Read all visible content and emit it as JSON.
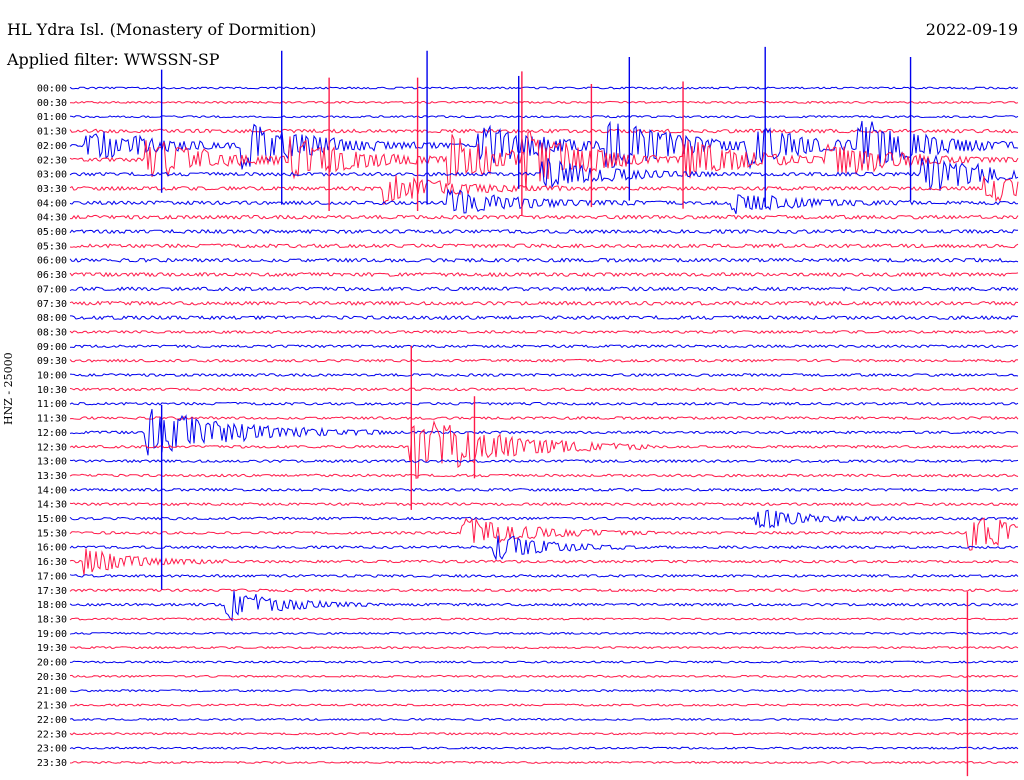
{
  "header": {
    "station": "HL Ydra Isl. (Monastery of Dormition)",
    "filter": "Applied filter: WWSSN-SP",
    "date": "2022-09-19",
    "channel_label": "HNZ - 25000"
  },
  "colors": {
    "odd_trace": "#0000ee",
    "even_trace": "#ff1a4a",
    "text": "#000000"
  },
  "chart_data": {
    "type": "helicorder",
    "title": "HL Ydra Isl. (Monastery of Dormition)",
    "subtitle": "Applied filter: WWSSN-SP",
    "ylabel": "HNZ - 25000",
    "row_labels": [
      "00:00",
      "00:30",
      "01:00",
      "01:30",
      "02:00",
      "02:30",
      "03:00",
      "03:30",
      "04:00",
      "04:30",
      "05:00",
      "05:30",
      "06:00",
      "06:30",
      "07:00",
      "07:30",
      "08:00",
      "08:30",
      "09:00",
      "09:30",
      "10:00",
      "10:30",
      "11:00",
      "11:30",
      "12:00",
      "12:30",
      "13:00",
      "13:30",
      "14:00",
      "14:30",
      "15:00",
      "15:30",
      "16:00",
      "16:30",
      "17:00",
      "17:30",
      "18:00",
      "18:30",
      "19:00",
      "19:30",
      "20:00",
      "20:30",
      "21:00",
      "21:30",
      "22:00",
      "22:30",
      "23:00",
      "23:30"
    ],
    "row_minutes": 30,
    "trace_colors": [
      "blue",
      "red"
    ],
    "events": [
      {
        "row": 4,
        "minute": 0.6,
        "amp": 1.6,
        "dur": 2.0
      },
      {
        "row": 4,
        "minute": 5.5,
        "amp": 2.2,
        "dur": 2.2
      },
      {
        "row": 4,
        "minute": 13.0,
        "amp": 2.0,
        "dur": 2.0
      },
      {
        "row": 4,
        "minute": 17.0,
        "amp": 2.4,
        "dur": 2.2
      },
      {
        "row": 4,
        "minute": 21.5,
        "amp": 1.8,
        "dur": 2.0
      },
      {
        "row": 4,
        "minute": 25.0,
        "amp": 2.4,
        "dur": 2.0
      },
      {
        "row": 5,
        "minute": 2.5,
        "amp": 2.0,
        "dur": 2.0
      },
      {
        "row": 5,
        "minute": 7.0,
        "amp": 2.0,
        "dur": 2.0
      },
      {
        "row": 5,
        "minute": 12.0,
        "amp": 2.2,
        "dur": 2.0
      },
      {
        "row": 5,
        "minute": 14.5,
        "amp": 2.2,
        "dur": 2.0
      },
      {
        "row": 5,
        "minute": 19.5,
        "amp": 1.8,
        "dur": 2.0
      },
      {
        "row": 5,
        "minute": 24.0,
        "amp": 1.8,
        "dur": 2.0
      },
      {
        "row": 6,
        "minute": 27.0,
        "amp": 2.0,
        "dur": 1.8
      },
      {
        "row": 6,
        "minute": 15.0,
        "amp": 1.6,
        "dur": 1.8
      },
      {
        "row": 7,
        "minute": 10.0,
        "amp": 1.4,
        "dur": 2.0
      },
      {
        "row": 7,
        "minute": 29.0,
        "amp": 1.4,
        "dur": 1.5
      },
      {
        "row": 8,
        "minute": 12.0,
        "amp": 1.2,
        "dur": 2.0
      },
      {
        "row": 8,
        "minute": 21.0,
        "amp": 1.0,
        "dur": 2.0
      },
      {
        "row": 24,
        "minute": 2.5,
        "amp": 2.4,
        "dur": 2.5
      },
      {
        "row": 25,
        "minute": 10.8,
        "amp": 3.2,
        "dur": 2.5
      },
      {
        "row": 30,
        "minute": 21.8,
        "amp": 1.0,
        "dur": 1.5
      },
      {
        "row": 31,
        "minute": 12.5,
        "amp": 1.4,
        "dur": 2.0
      },
      {
        "row": 31,
        "minute": 28.5,
        "amp": 1.8,
        "dur": 2.0
      },
      {
        "row": 32,
        "minute": 13.5,
        "amp": 1.4,
        "dur": 1.5
      },
      {
        "row": 33,
        "minute": 0.5,
        "amp": 1.2,
        "dur": 1.5
      },
      {
        "row": 36,
        "minute": 5.0,
        "amp": 1.6,
        "dur": 1.5
      }
    ],
    "spikes": [
      {
        "row": 4,
        "minute": 2.9,
        "amp": 6.0
      },
      {
        "row": 4,
        "minute": 6.7,
        "amp": 7.5
      },
      {
        "row": 4,
        "minute": 11.3,
        "amp": 7.5
      },
      {
        "row": 4,
        "minute": 14.2,
        "amp": 5.5
      },
      {
        "row": 4,
        "minute": 17.7,
        "amp": 7.0
      },
      {
        "row": 4,
        "minute": 22.0,
        "amp": 7.8
      },
      {
        "row": 4,
        "minute": 26.6,
        "amp": 7.0
      },
      {
        "row": 5,
        "minute": 8.2,
        "amp": 6.5
      },
      {
        "row": 5,
        "minute": 11.0,
        "amp": 6.5
      },
      {
        "row": 5,
        "minute": 14.3,
        "amp": 7.0
      },
      {
        "row": 5,
        "minute": 16.5,
        "amp": 6.0
      },
      {
        "row": 5,
        "minute": 19.4,
        "amp": 6.2
      },
      {
        "row": 25,
        "minute": 10.8,
        "amp": 8.0
      },
      {
        "row": 25,
        "minute": 12.8,
        "amp": 4.0
      },
      {
        "row": 43,
        "minute": 28.4,
        "amp": 9.0
      },
      {
        "row": 30,
        "minute": 2.9,
        "amp": 9.0
      }
    ]
  }
}
